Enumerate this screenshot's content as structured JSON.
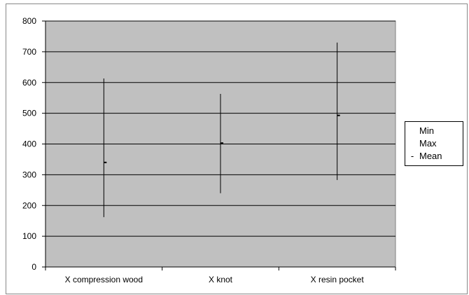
{
  "chart_data": {
    "type": "stock-hlc",
    "categories": [
      "X compression wood",
      "X knot",
      "X resin pocket"
    ],
    "series": [
      {
        "name": "Min",
        "values": [
          162,
          240,
          283
        ]
      },
      {
        "name": "Max",
        "values": [
          613,
          563,
          730
        ]
      },
      {
        "name": "Mean",
        "values": [
          340,
          403,
          493
        ]
      }
    ],
    "ylim": [
      0,
      800
    ],
    "yticks": [
      0,
      100,
      200,
      300,
      400,
      500,
      600,
      700,
      800
    ],
    "grid": true,
    "legend_position": "right",
    "colors": {
      "plot_bg": "#c0c0c0",
      "line": "#000000",
      "grid": "#000000"
    }
  },
  "legend": {
    "items": [
      {
        "marker": "",
        "label": "Min"
      },
      {
        "marker": "",
        "label": "Max"
      },
      {
        "marker": "-",
        "label": "Mean"
      }
    ]
  }
}
